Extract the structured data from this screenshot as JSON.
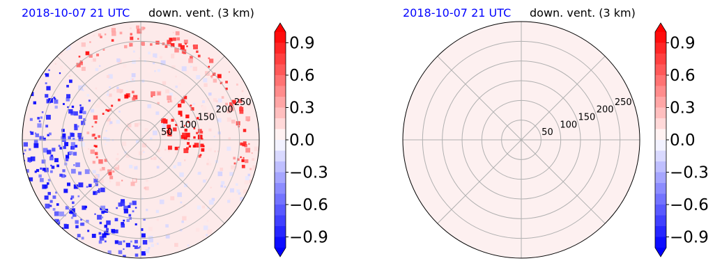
{
  "panels": [
    {
      "date_label": "2018-10-07 21 UTC",
      "title": "down. vent. (3 km)",
      "date_color": "#0000ff",
      "radial_ticks": [
        "50",
        "100",
        "150",
        "200",
        "250"
      ],
      "fill": "field"
    },
    {
      "date_label": "2018-10-07 21 UTC",
      "title": "down. vent. (3 km)",
      "date_color": "#0000ff",
      "radial_ticks": [
        "50",
        "100",
        "150",
        "200",
        "250"
      ],
      "fill": "uniform"
    }
  ],
  "colorbar": {
    "ticks": [
      "0.9",
      "0.6",
      "0.3",
      "0.0",
      "−0.3",
      "−0.6",
      "−0.9"
    ],
    "range": [
      -1.0,
      1.0
    ],
    "colormap": "bwr",
    "extend": "both"
  },
  "chart_data": [
    {
      "type": "heatmap",
      "projection": "polar",
      "title": "down. vent. (3 km)",
      "date": "2018-10-07 21 UTC",
      "r_ticks": [
        50,
        100,
        150,
        200,
        250
      ],
      "r_max": 300,
      "theta_gridlines_deg": [
        0,
        45,
        90,
        135,
        180,
        225,
        270,
        315
      ],
      "color_range": [
        -1.0,
        1.0
      ],
      "colorbar_ticks": [
        0.9,
        0.6,
        0.3,
        0.0,
        -0.3,
        -0.6,
        -0.9
      ],
      "field_description_values": {
        "inner_ring_r": 115,
        "outer_band_r": 260,
        "peak_value": 1.0,
        "min_value": -1.0,
        "background_value": 0.05
      }
    },
    {
      "type": "heatmap",
      "projection": "polar",
      "title": "down. vent. (3 km)",
      "date": "2018-10-07 21 UTC",
      "r_ticks": [
        50,
        100,
        150,
        200,
        250
      ],
      "r_max": 300,
      "theta_gridlines_deg": [
        0,
        45,
        90,
        135,
        180,
        225,
        270,
        315
      ],
      "color_range": [
        -1.0,
        1.0
      ],
      "colorbar_ticks": [
        0.9,
        0.6,
        0.3,
        0.0,
        -0.3,
        -0.6,
        -0.9
      ],
      "uniform_value": 0.05
    }
  ]
}
